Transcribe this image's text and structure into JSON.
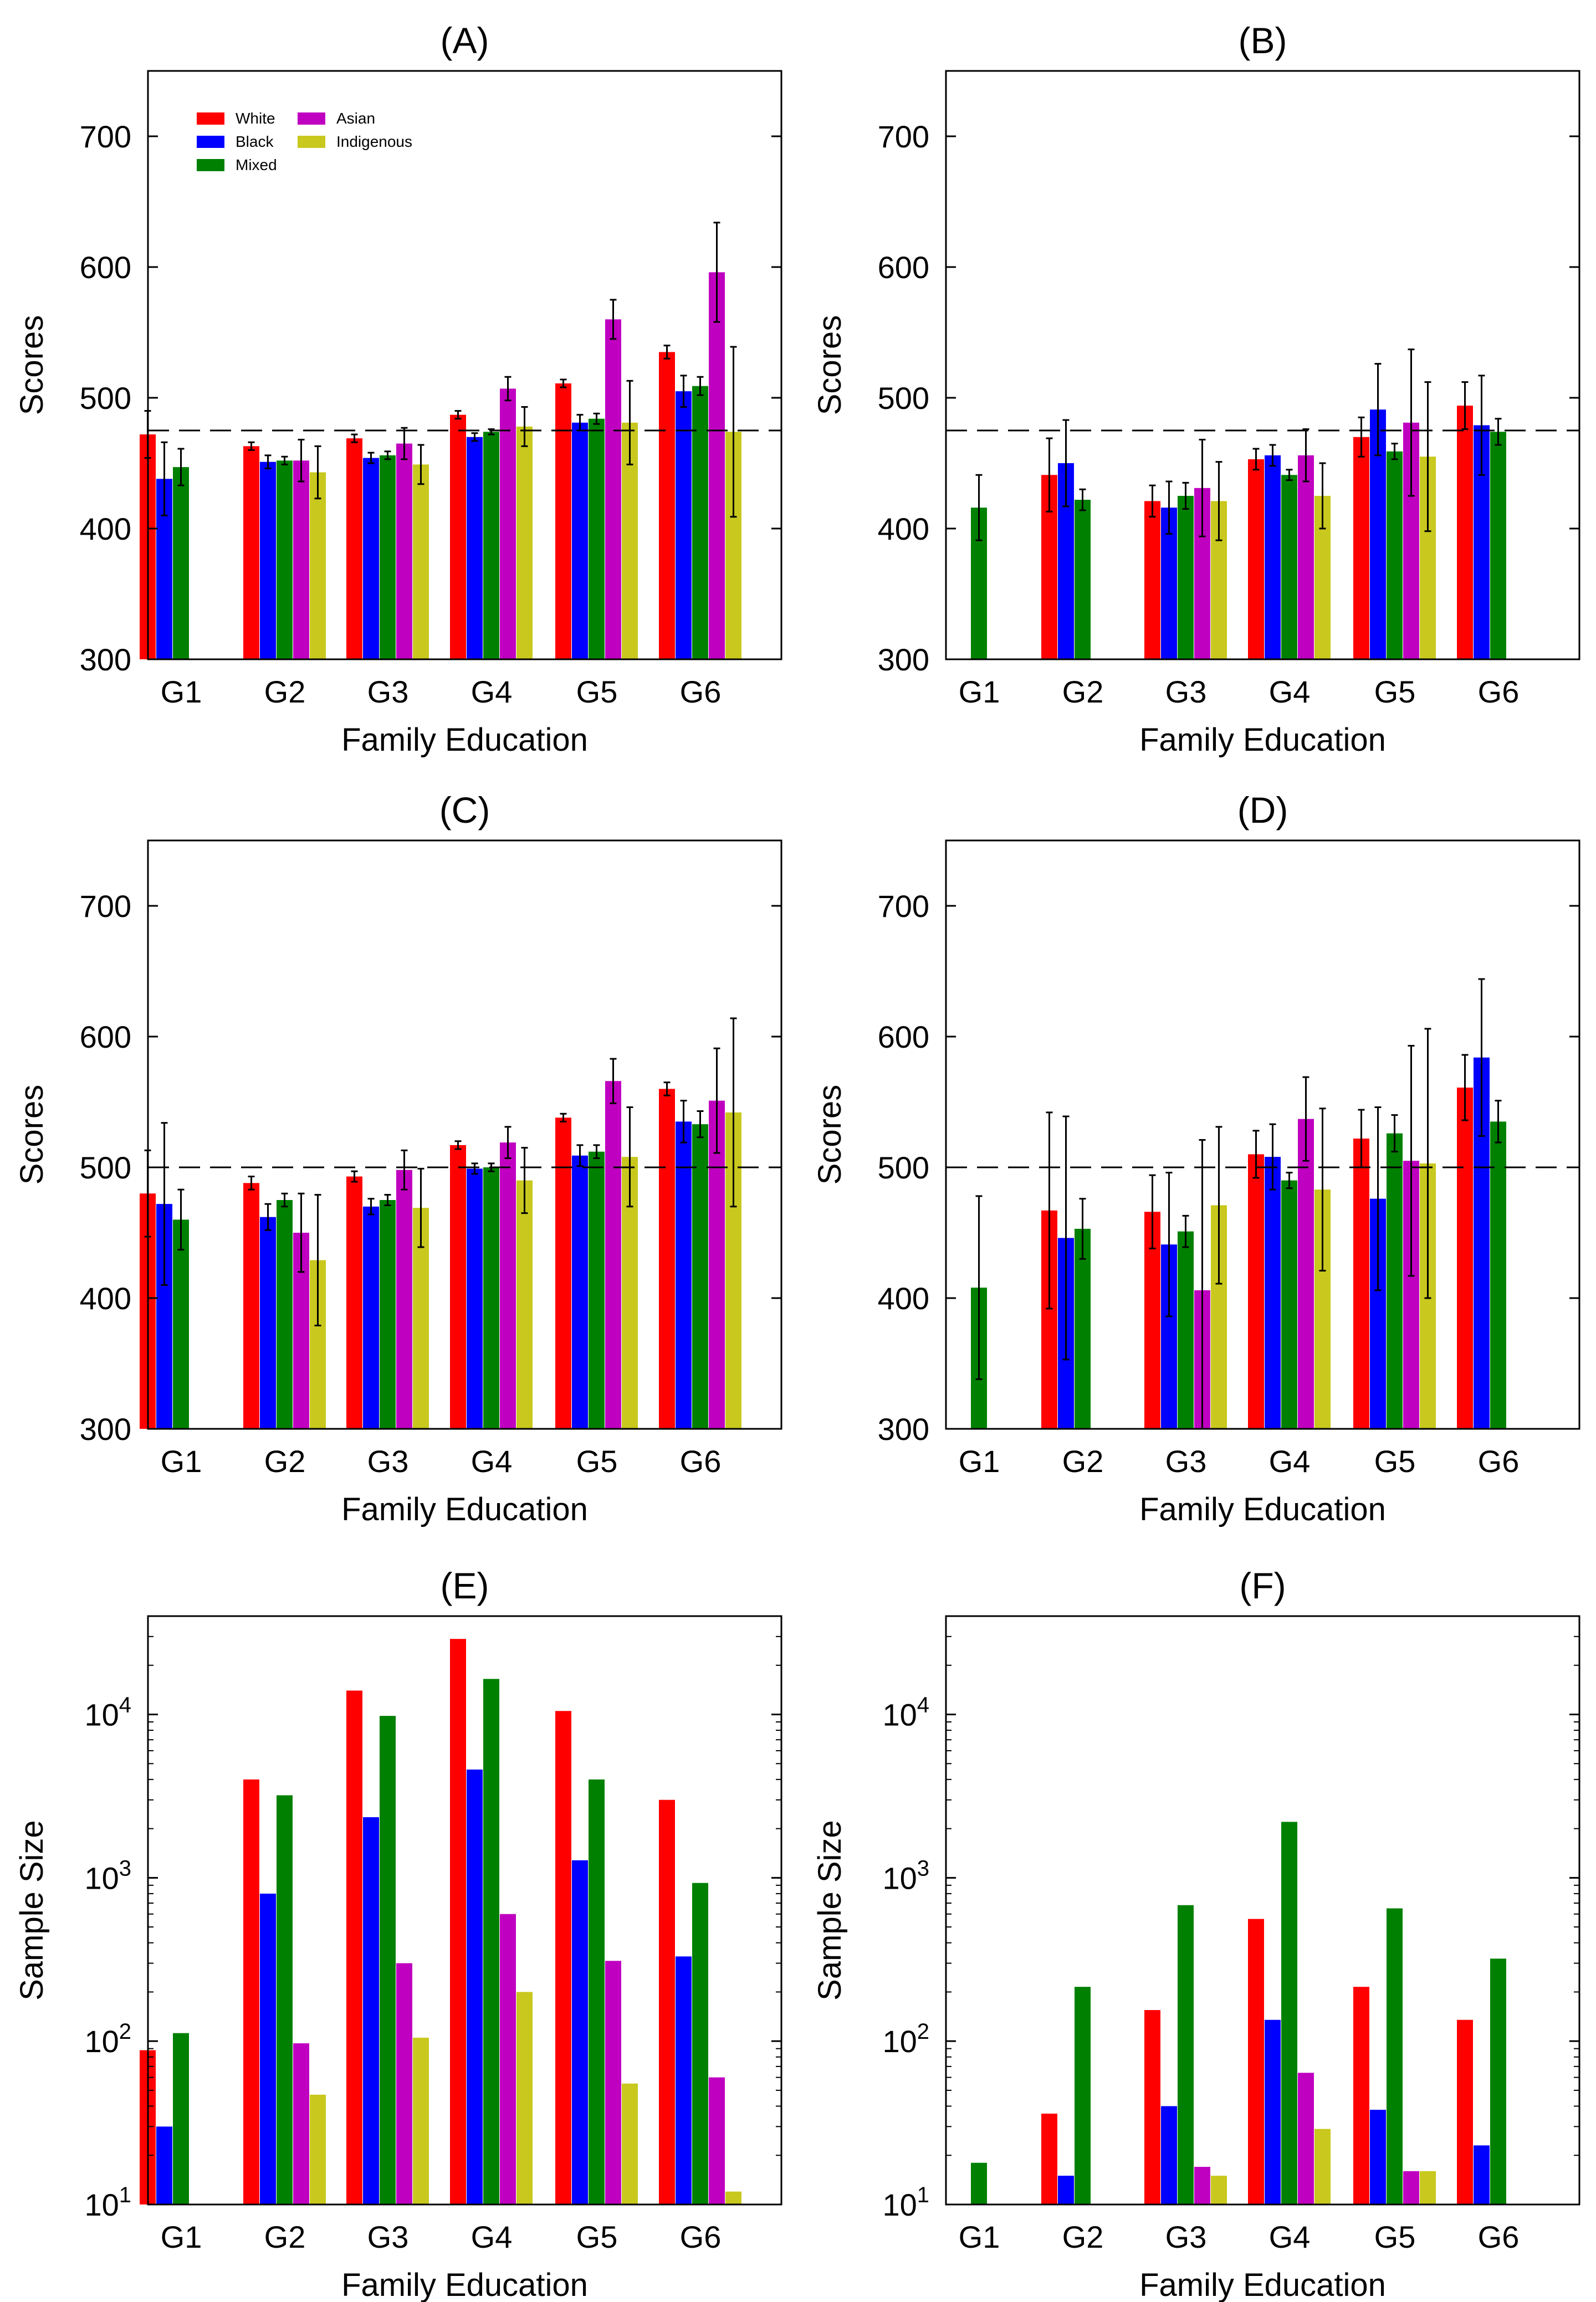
{
  "colors": {
    "White": "#ff0000",
    "Black": "#0000ff",
    "Mixed": "#008000",
    "Asian": "#c000c0",
    "Indigenous": "#c8c81e"
  },
  "chart_data": [
    {
      "type": "bar",
      "title": "(A)",
      "xlabel": "Family Education",
      "ylabel": "Scores",
      "scale": "linear",
      "ylim": [
        300,
        750
      ],
      "yticks": [
        300,
        400,
        500,
        600,
        700
      ],
      "ytick_labels": [
        "300",
        "400",
        "500",
        "600",
        "700"
      ],
      "reference_line": 475,
      "legend": {
        "placement": "top-left",
        "entries": [
          "White",
          "Black",
          "Mixed",
          "Asian",
          "Indigenous"
        ]
      },
      "categories": [
        "G1",
        "G2",
        "G3",
        "G4",
        "G5",
        "G6"
      ],
      "series": [
        {
          "name": "White",
          "values": [
            472,
            463,
            469,
            487,
            511,
            535
          ],
          "errors": [
            18,
            3,
            3,
            3,
            3,
            5
          ]
        },
        {
          "name": "Black",
          "values": [
            438,
            451,
            454,
            470,
            481,
            505
          ],
          "errors": [
            28,
            5,
            4,
            3,
            6,
            12
          ]
        },
        {
          "name": "Mixed",
          "values": [
            447,
            452,
            456,
            474,
            484,
            509
          ],
          "errors": [
            14,
            3,
            3,
            2,
            4,
            7
          ]
        },
        {
          "name": "Asian",
          "values": [
            null,
            452,
            465,
            507,
            560,
            596
          ],
          "errors": [
            null,
            16,
            12,
            9,
            15,
            38
          ]
        },
        {
          "name": "Indigenous",
          "values": [
            null,
            443,
            449,
            478,
            481,
            474
          ],
          "errors": [
            null,
            20,
            15,
            15,
            32,
            65
          ]
        }
      ]
    },
    {
      "type": "bar",
      "title": "(B)",
      "xlabel": "Family Education",
      "ylabel": "Scores",
      "scale": "linear",
      "ylim": [
        300,
        750
      ],
      "yticks": [
        300,
        400,
        500,
        600,
        700
      ],
      "ytick_labels": [
        "300",
        "400",
        "500",
        "600",
        "700"
      ],
      "reference_line": 475,
      "categories": [
        "G1",
        "G2",
        "G3",
        "G4",
        "G5",
        "G6"
      ],
      "series": [
        {
          "name": "White",
          "values": [
            null,
            441,
            421,
            453,
            470,
            494
          ],
          "errors": [
            null,
            28,
            12,
            8,
            15,
            18
          ]
        },
        {
          "name": "Black",
          "values": [
            null,
            450,
            416,
            456,
            491,
            479
          ],
          "errors": [
            null,
            33,
            20,
            8,
            35,
            38
          ]
        },
        {
          "name": "Mixed",
          "values": [
            416,
            422,
            425,
            441,
            459,
            474
          ],
          "errors": [
            25,
            8,
            10,
            4,
            6,
            10
          ]
        },
        {
          "name": "Asian",
          "values": [
            null,
            null,
            431,
            456,
            481,
            null
          ],
          "errors": [
            null,
            null,
            37,
            20,
            56,
            null
          ]
        },
        {
          "name": "Indigenous",
          "values": [
            null,
            null,
            421,
            425,
            455,
            null
          ],
          "errors": [
            null,
            null,
            30,
            25,
            57,
            null
          ]
        }
      ]
    },
    {
      "type": "bar",
      "title": "(C)",
      "xlabel": "Family Education",
      "ylabel": "Scores",
      "scale": "linear",
      "ylim": [
        300,
        750
      ],
      "yticks": [
        300,
        400,
        500,
        600,
        700
      ],
      "ytick_labels": [
        "300",
        "400",
        "500",
        "600",
        "700"
      ],
      "reference_line": 500,
      "categories": [
        "G1",
        "G2",
        "G3",
        "G4",
        "G5",
        "G6"
      ],
      "series": [
        {
          "name": "White",
          "values": [
            480,
            488,
            493,
            517,
            538,
            560
          ],
          "errors": [
            33,
            5,
            4,
            3,
            3,
            5
          ]
        },
        {
          "name": "Black",
          "values": [
            472,
            462,
            470,
            499,
            509,
            535
          ],
          "errors": [
            62,
            10,
            6,
            4,
            8,
            16
          ]
        },
        {
          "name": "Mixed",
          "values": [
            460,
            475,
            475,
            500,
            512,
            533
          ],
          "errors": [
            23,
            5,
            4,
            3,
            5,
            10
          ]
        },
        {
          "name": "Asian",
          "values": [
            null,
            450,
            498,
            519,
            566,
            551
          ],
          "errors": [
            null,
            30,
            15,
            12,
            17,
            40
          ]
        },
        {
          "name": "Indigenous",
          "values": [
            null,
            429,
            469,
            490,
            508,
            542
          ],
          "errors": [
            null,
            50,
            30,
            25,
            38,
            72
          ]
        }
      ]
    },
    {
      "type": "bar",
      "title": "(D)",
      "xlabel": "Family Education",
      "ylabel": "Scores",
      "scale": "linear",
      "ylim": [
        300,
        750
      ],
      "yticks": [
        300,
        400,
        500,
        600,
        700
      ],
      "ytick_labels": [
        "300",
        "400",
        "500",
        "600",
        "700"
      ],
      "reference_line": 500,
      "categories": [
        "G1",
        "G2",
        "G3",
        "G4",
        "G5",
        "G6"
      ],
      "series": [
        {
          "name": "White",
          "values": [
            null,
            467,
            466,
            510,
            522,
            561
          ],
          "errors": [
            null,
            75,
            28,
            18,
            22,
            25
          ]
        },
        {
          "name": "Black",
          "values": [
            null,
            446,
            441,
            508,
            476,
            584
          ],
          "errors": [
            null,
            93,
            55,
            25,
            70,
            60
          ]
        },
        {
          "name": "Mixed",
          "values": [
            408,
            453,
            451,
            490,
            526,
            535
          ],
          "errors": [
            70,
            23,
            12,
            6,
            14,
            16
          ]
        },
        {
          "name": "Asian",
          "values": [
            null,
            null,
            406,
            537,
            505,
            null
          ],
          "errors": [
            null,
            null,
            115,
            32,
            88,
            null
          ]
        },
        {
          "name": "Indigenous",
          "values": [
            null,
            null,
            471,
            483,
            503,
            null
          ],
          "errors": [
            null,
            null,
            60,
            62,
            103,
            null
          ]
        }
      ]
    },
    {
      "type": "bar",
      "title": "(E)",
      "xlabel": "Family Education",
      "ylabel": "Sample Size",
      "scale": "log",
      "ylim": [
        10,
        40000
      ],
      "yticks": [
        10,
        100,
        1000,
        10000
      ],
      "ytick_base": "10",
      "ytick_exponents": [
        "1",
        "2",
        "3",
        "4"
      ],
      "categories": [
        "G1",
        "G2",
        "G3",
        "G4",
        "G5",
        "G6"
      ],
      "series": [
        {
          "name": "White",
          "values": [
            88,
            4000,
            14000,
            29000,
            10500,
            3000
          ]
        },
        {
          "name": "Black",
          "values": [
            30,
            800,
            2350,
            4600,
            1280,
            330
          ]
        },
        {
          "name": "Mixed",
          "values": [
            112,
            3200,
            9800,
            16500,
            4000,
            930
          ]
        },
        {
          "name": "Asian",
          "values": [
            null,
            97,
            300,
            600,
            310,
            60
          ]
        },
        {
          "name": "Indigenous",
          "values": [
            null,
            47,
            105,
            200,
            55,
            12
          ]
        }
      ]
    },
    {
      "type": "bar",
      "title": "(F)",
      "xlabel": "Family Education",
      "ylabel": "Sample Size",
      "scale": "log",
      "ylim": [
        10,
        40000
      ],
      "yticks": [
        10,
        100,
        1000,
        10000
      ],
      "ytick_base": "10",
      "ytick_exponents": [
        "1",
        "2",
        "3",
        "4"
      ],
      "categories": [
        "G1",
        "G2",
        "G3",
        "G4",
        "G5",
        "G6"
      ],
      "series": [
        {
          "name": "White",
          "values": [
            null,
            36,
            155,
            560,
            215,
            135
          ]
        },
        {
          "name": "Black",
          "values": [
            null,
            15,
            40,
            135,
            38,
            23
          ]
        },
        {
          "name": "Mixed",
          "values": [
            18,
            215,
            680,
            2200,
            650,
            320
          ]
        },
        {
          "name": "Asian",
          "values": [
            null,
            null,
            17,
            64,
            16,
            null
          ]
        },
        {
          "name": "Indigenous",
          "values": [
            null,
            null,
            15,
            29,
            16,
            null
          ]
        }
      ]
    }
  ]
}
